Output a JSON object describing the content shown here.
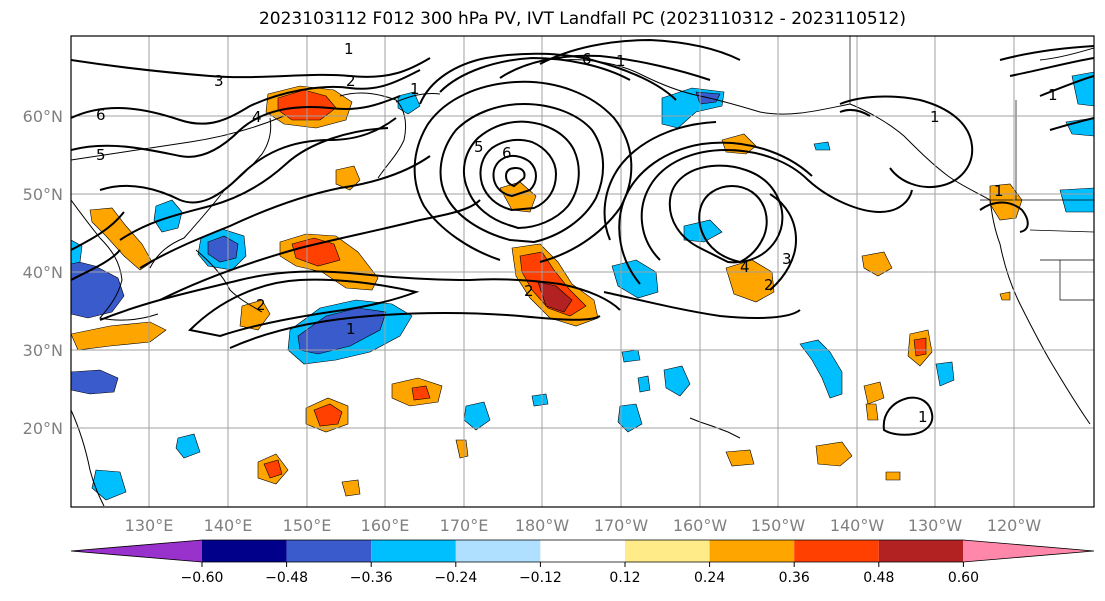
{
  "title": "2023103112 F012 300 hPa PV, IVT Landfall PC (2023110312 - 2023110512)",
  "lat_labels": [
    "60°N",
    "50°N",
    "40°N",
    "30°N",
    "20°N"
  ],
  "lon_labels": [
    "130°E",
    "140°E",
    "150°E",
    "160°E",
    "170°E",
    "180°W",
    "170°W",
    "160°W",
    "150°W",
    "140°W",
    "130°W",
    "120°W"
  ],
  "colorbar": {
    "tick_labels": [
      "−0.60",
      "−0.48",
      "−0.36",
      "−0.24",
      "−0.12",
      "0.12",
      "0.24",
      "0.36",
      "0.48",
      "0.60"
    ],
    "colors": [
      "#9932cc",
      "#00008b",
      "#3a5bcc",
      "#00bfff",
      "#b0e0ff",
      "#ffffff",
      "#ffeb88",
      "#ffa500",
      "#ff4000",
      "#b22222",
      "#ff88aa"
    ]
  },
  "contour_labels": [
    "6",
    "5",
    "3",
    "2",
    "1",
    "1",
    "4",
    "2",
    "6",
    "5",
    "6",
    "1",
    "4",
    "3",
    "2",
    "2",
    "1",
    "1",
    "1",
    "1",
    "1"
  ]
}
